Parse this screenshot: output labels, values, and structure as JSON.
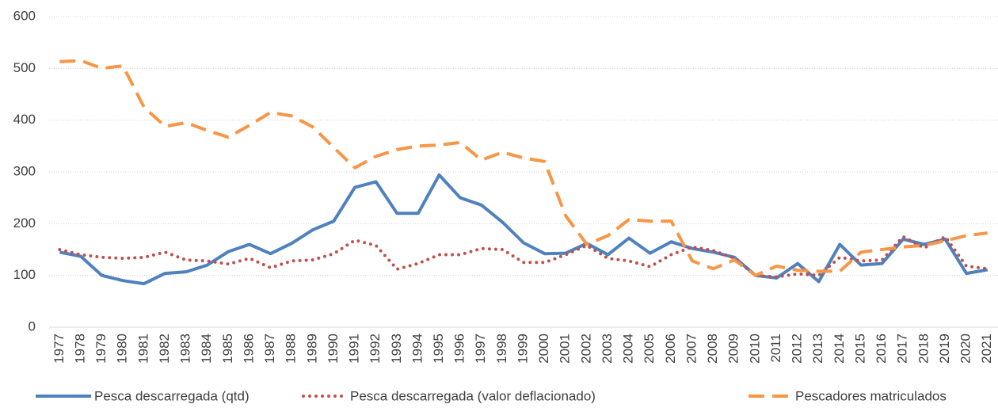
{
  "chart_data": {
    "type": "line",
    "categories": [
      "1977",
      "1978",
      "1979",
      "1980",
      "1981",
      "1982",
      "1983",
      "1984",
      "1985",
      "1986",
      "1987",
      "1988",
      "1989",
      "1990",
      "1991",
      "1992",
      "1993",
      "1994",
      "1995",
      "1996",
      "1997",
      "1998",
      "1999",
      "2000",
      "2001",
      "2002",
      "2003",
      "2004",
      "2005",
      "2006",
      "2007",
      "2008",
      "2009",
      "2010",
      "2011",
      "2012",
      "2013",
      "2014",
      "2015",
      "2016",
      "2017",
      "2018",
      "2019",
      "2020",
      "2021"
    ],
    "series": [
      {
        "name": "Pesca descarregada (qtd)",
        "color": "#4f81bd",
        "style": "solid",
        "values": [
          145,
          137,
          100,
          90,
          84,
          104,
          107,
          120,
          146,
          160,
          142,
          162,
          188,
          205,
          270,
          281,
          220,
          220,
          294,
          250,
          236,
          203,
          163,
          142,
          143,
          162,
          140,
          172,
          143,
          165,
          152,
          145,
          135,
          100,
          95,
          123,
          88,
          160,
          120,
          123,
          170,
          160,
          170,
          104,
          111
        ]
      },
      {
        "name": "Pesca descarregada (valor deflacionado)",
        "color": "#c0504d",
        "style": "dotted",
        "values": [
          150,
          140,
          135,
          133,
          135,
          145,
          130,
          128,
          122,
          133,
          115,
          128,
          130,
          142,
          168,
          158,
          112,
          123,
          140,
          140,
          152,
          150,
          125,
          125,
          140,
          158,
          133,
          128,
          117,
          140,
          155,
          148,
          133,
          100,
          97,
          103,
          100,
          135,
          128,
          130,
          175,
          153,
          175,
          118,
          113
        ]
      },
      {
        "name": "Pescadores matriculados",
        "color": "#f79646",
        "style": "dashed",
        "values": [
          513,
          515,
          500,
          505,
          425,
          388,
          395,
          380,
          367,
          390,
          415,
          408,
          387,
          347,
          308,
          330,
          343,
          350,
          352,
          357,
          323,
          338,
          327,
          320,
          215,
          160,
          177,
          208,
          205,
          205,
          128,
          113,
          130,
          100,
          118,
          110,
          108,
          108,
          145,
          150,
          155,
          158,
          167,
          177,
          182
        ]
      }
    ],
    "ylim": [
      0,
      600
    ],
    "yticks": [
      0,
      100,
      200,
      300,
      400,
      500,
      600
    ],
    "grid": true,
    "legend": "bottom"
  }
}
